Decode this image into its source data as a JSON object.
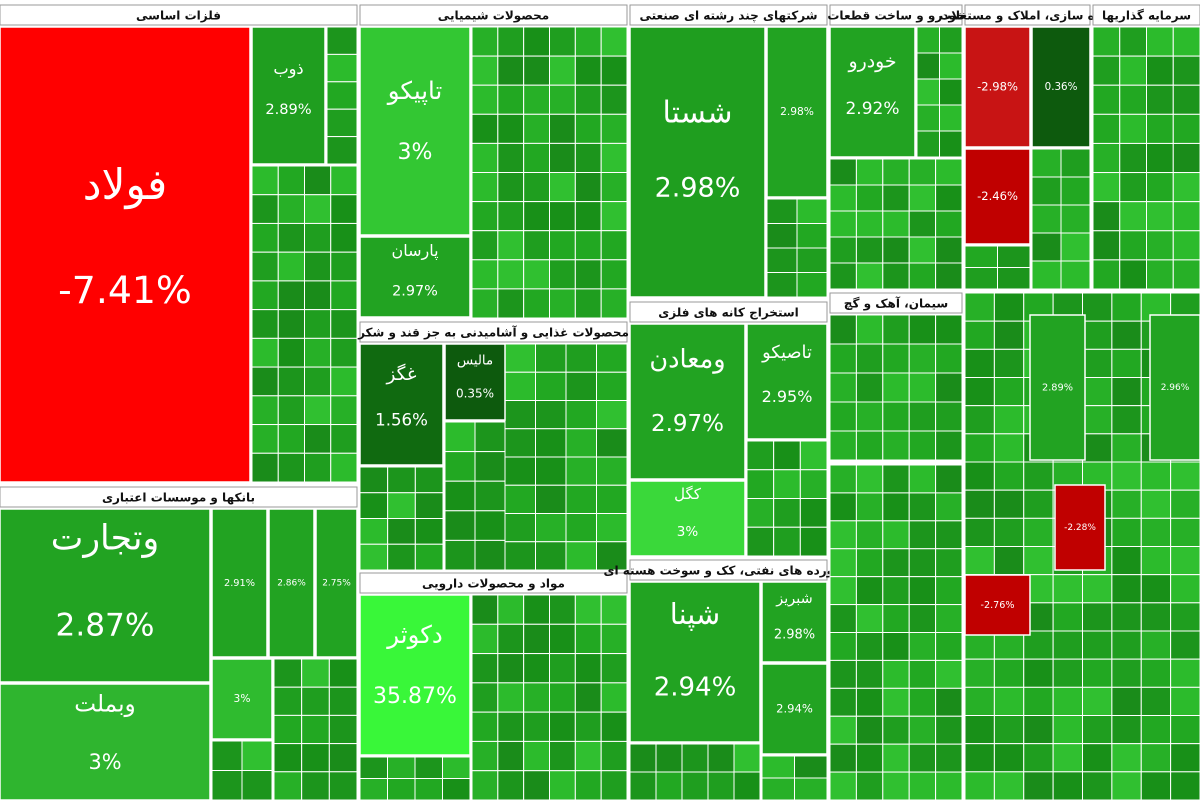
{
  "sectors": [
    {
      "title": "فلزات اساسی",
      "tiles": [
        {
          "name": "فولاد",
          "change": "-7.41%",
          "color": "#ff0000"
        },
        {
          "name": "ذوب",
          "change": "2.89%",
          "color": "#1f9e1f"
        }
      ]
    },
    {
      "title": "بانکها و موسسات اعتباری",
      "tiles": [
        {
          "name": "وتجارت",
          "change": "2.87%",
          "color": "#22a322"
        },
        {
          "name": "وبملت",
          "change": "3%",
          "color": "#2fb52f"
        },
        {
          "change": "2.91%",
          "color": "#22a322"
        },
        {
          "change": "2.86%",
          "color": "#22a322"
        },
        {
          "change": "2.75%",
          "color": "#22a322"
        },
        {
          "change": "3%",
          "color": "#2fbb2f"
        }
      ]
    },
    {
      "title": "محصولات شیمیایی",
      "tiles": [
        {
          "name": "تاپیکو",
          "change": "3%",
          "color": "#33c733"
        },
        {
          "name": "پارسان",
          "change": "2.97%",
          "color": "#22a322"
        }
      ]
    },
    {
      "title": "محصولات غذایی و آشامیدنی به جز قند و شکر",
      "tiles": [
        {
          "name": "غگز",
          "change": "1.56%",
          "color": "#106a10"
        },
        {
          "name": "مالیس",
          "change": "0.35%",
          "color": "#0d5a0d"
        }
      ]
    },
    {
      "title": "مواد و محصولات دارویی",
      "tiles": [
        {
          "name": "دکوثر",
          "change": "35.87%",
          "color": "#39f739"
        }
      ]
    },
    {
      "title": "شرکتهای چند رشته ای صنعتی",
      "tiles": [
        {
          "name": "شستا",
          "change": "2.98%",
          "color": "#1f9e1f"
        },
        {
          "change": "2.98%",
          "color": "#22a322"
        }
      ]
    },
    {
      "title": "استخراج کانه های فلزی",
      "tiles": [
        {
          "name": "ومعادن",
          "change": "2.97%",
          "color": "#22a322"
        },
        {
          "name": "تاصیکو",
          "change": "2.95%",
          "color": "#22a322"
        },
        {
          "name": "کگل",
          "change": "3%",
          "color": "#3ad83a"
        }
      ]
    },
    {
      "title": "فراورده های نفتی، کک و سوخت هسته ای",
      "tiles": [
        {
          "name": "شپنا",
          "change": "2.94%",
          "color": "#22a322"
        },
        {
          "name": "شبریز",
          "change": "2.98%",
          "color": "#22a322"
        },
        {
          "change": "2.94%",
          "color": "#22a322"
        }
      ]
    },
    {
      "title": "خودرو و ساخت قطعات",
      "tiles": [
        {
          "name": "خودرو",
          "change": "2.92%",
          "color": "#22a322"
        }
      ]
    },
    {
      "title": "انبوه سازی، املاک و مستغلات",
      "tiles": [
        {
          "change": "-2.98%",
          "color": "#c81414"
        },
        {
          "change": "-2.46%",
          "color": "#c00000"
        },
        {
          "change": "0.36%",
          "color": "#0d5a0d"
        }
      ]
    },
    {
      "title": "سرمایه گذاریها",
      "tiles": []
    },
    {
      "title": "سیمان، آهک و گچ",
      "tiles": []
    },
    {
      "tiles": [
        {
          "change": "2.89%",
          "color": "#22a322"
        },
        {
          "change": "2.96%",
          "color": "#22a322"
        },
        {
          "change": "-2.28%",
          "color": "#c00000"
        },
        {
          "change": "-2.76%",
          "color": "#c00000"
        }
      ]
    }
  ]
}
